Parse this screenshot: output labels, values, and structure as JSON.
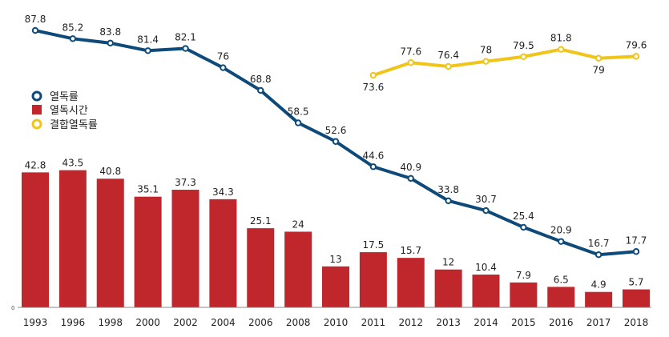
{
  "chart_data": {
    "type": "bar",
    "categories": [
      "1993",
      "1996",
      "1998",
      "2000",
      "2002",
      "2004",
      "2006",
      "2008",
      "2010",
      "2011",
      "2012",
      "2013",
      "2014",
      "2015",
      "2016",
      "2017",
      "2018"
    ],
    "ylim": [
      0,
      100
    ],
    "zero_label": "0",
    "grid": false,
    "legend_position": "left",
    "series": [
      {
        "name": "열독률",
        "type": "line",
        "color": "#0d4a7a",
        "values": [
          87.8,
          85.2,
          83.8,
          81.4,
          82.1,
          76,
          68.8,
          58.5,
          52.6,
          44.6,
          40.9,
          33.8,
          30.7,
          25.4,
          20.9,
          16.7,
          17.7
        ]
      },
      {
        "name": "열독시간",
        "type": "bar",
        "color": "#c0272d",
        "values": [
          42.8,
          43.5,
          40.8,
          35.1,
          37.3,
          34.3,
          25.1,
          24,
          13,
          17.5,
          15.7,
          12,
          10.4,
          7.9,
          6.5,
          4.9,
          5.7
        ]
      },
      {
        "name": "결합열독률",
        "type": "line",
        "color": "#f0c419",
        "values": [
          null,
          null,
          null,
          null,
          null,
          null,
          null,
          null,
          null,
          73.6,
          77.6,
          76.4,
          78,
          79.5,
          81.8,
          79,
          79.6
        ]
      }
    ]
  }
}
